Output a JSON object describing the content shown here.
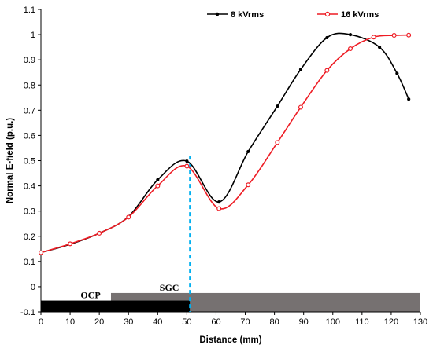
{
  "chart_data": {
    "type": "line",
    "title": "",
    "xlabel": "Distance (mm)",
    "ylabel": "Normal E-field (p.u.)",
    "xlim": [
      0,
      130
    ],
    "ylim": [
      -0.1,
      1.1
    ],
    "x_ticks": [
      "0",
      "10",
      "20",
      "30",
      "40",
      "50",
      "60",
      "70",
      "80",
      "90",
      "100",
      "110",
      "120",
      "130"
    ],
    "y_ticks": [
      "-0.1",
      "0",
      "0.1",
      "0.2",
      "0.3",
      "0.4",
      "0.5",
      "0.6",
      "0.7",
      "0.8",
      "0.9",
      "1",
      "1.1"
    ],
    "grid": false,
    "legend_position": "top-right",
    "series": [
      {
        "name": "8 kVrms",
        "color": "#000000",
        "marker": "filled-dot",
        "points": [
          [
            0,
            0.135
          ],
          [
            10,
            0.168
          ],
          [
            20,
            0.212
          ],
          [
            30,
            0.278
          ],
          [
            40,
            0.424
          ],
          [
            50,
            0.498
          ],
          [
            61,
            0.336
          ],
          [
            71,
            0.536
          ],
          [
            81,
            0.716
          ],
          [
            89,
            0.862
          ],
          [
            98,
            0.988
          ],
          [
            106,
            1.0
          ],
          [
            116,
            0.95
          ],
          [
            122,
            0.846
          ],
          [
            126,
            0.744
          ]
        ]
      },
      {
        "name": "16 kVrms",
        "color": "#ee1c24",
        "marker": "open-circle",
        "points": [
          [
            0,
            0.135
          ],
          [
            10,
            0.17
          ],
          [
            20,
            0.212
          ],
          [
            30,
            0.276
          ],
          [
            40,
            0.4
          ],
          [
            50,
            0.478
          ],
          [
            61,
            0.31
          ],
          [
            71,
            0.404
          ],
          [
            81,
            0.572
          ],
          [
            89,
            0.712
          ],
          [
            98,
            0.858
          ],
          [
            106,
            0.944
          ],
          [
            114,
            0.99
          ],
          [
            121,
            0.997
          ],
          [
            126,
            0.998
          ]
        ]
      }
    ],
    "annotations": {
      "vertical_line": {
        "x": 51,
        "y_top": 0.52,
        "color": "#00b0f0",
        "style": "dashed"
      },
      "bands": [
        {
          "label": "OCP",
          "x_start": 0,
          "x_end": 51,
          "y_top": -0.055,
          "y_bottom": -0.1,
          "color": "#000000"
        },
        {
          "label": "SGC",
          "x_start": 24,
          "x_end": 130,
          "y_top": -0.025,
          "y_bottom": -0.1,
          "color": "#767171"
        }
      ]
    }
  }
}
